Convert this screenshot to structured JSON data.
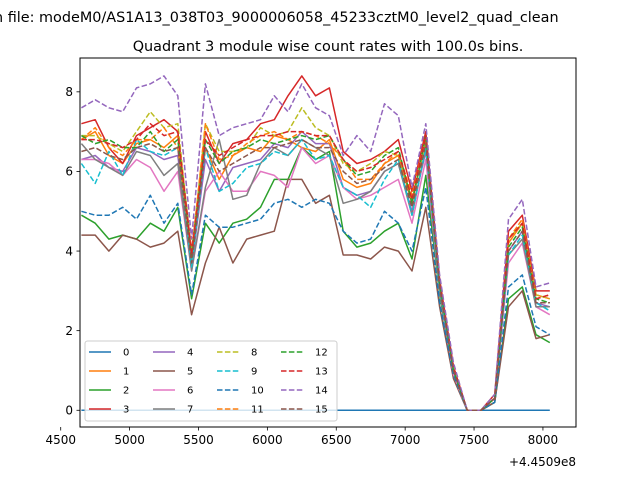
{
  "figure": {
    "suptitle": "n file: modeM0/AS1A13_038T03_9000006058_45233cztM0_level2_quad_clean",
    "title": "Quadrant 3 module wise count rates with 100.0s bins.",
    "x_offset_label": "+4.4509e8"
  },
  "chart_data": {
    "type": "line",
    "title": "Quadrant 3 module wise count rates with 100.0s bins.",
    "xlabel": "",
    "ylabel": "",
    "x_offset": 445090000,
    "xlim": [
      4640,
      8240
    ],
    "ylim": [
      -0.42,
      8.85
    ],
    "xticks": [
      4500,
      5000,
      5500,
      6000,
      6500,
      7000,
      7500,
      8000
    ],
    "yticks": [
      0,
      2,
      4,
      6,
      8
    ],
    "grid": false,
    "legend": {
      "location": "lower left",
      "columns": 4
    },
    "x": [
      4650,
      4750,
      4850,
      4950,
      5050,
      5150,
      5250,
      5350,
      5450,
      5550,
      5650,
      5750,
      5850,
      5950,
      6050,
      6150,
      6250,
      6350,
      6450,
      6550,
      6650,
      6750,
      6850,
      6950,
      7050,
      7150,
      7250,
      7350,
      7450,
      7550,
      7650,
      7750,
      7850,
      7950,
      8050
    ],
    "series": [
      {
        "name": "0",
        "color": "#1f77b4",
        "dash": "solid",
        "values": [
          0,
          0,
          0,
          0,
          0,
          0,
          0,
          0,
          0,
          0,
          0,
          0,
          0,
          0,
          0,
          0,
          0,
          0,
          0,
          0,
          0,
          0,
          0,
          0,
          0,
          0,
          0,
          0,
          0,
          0,
          0,
          0,
          0,
          0,
          0
        ]
      },
      {
        "name": "1",
        "color": "#ff7f0e",
        "dash": "solid",
        "values": [
          6.8,
          7.0,
          6.4,
          6.2,
          6.7,
          6.8,
          6.6,
          6.9,
          3.8,
          6.6,
          5.8,
          6.4,
          6.6,
          6.5,
          6.9,
          6.8,
          6.6,
          6.5,
          6.8,
          5.8,
          5.6,
          5.7,
          6.2,
          6.4,
          5.2,
          6.8,
          3.2,
          1.0,
          0,
          0,
          0.3,
          4.2,
          4.7,
          2.9,
          2.8
        ]
      },
      {
        "name": "2",
        "color": "#2ca02c",
        "dash": "solid",
        "values": [
          4.9,
          4.7,
          4.3,
          4.4,
          4.3,
          4.7,
          4.5,
          5.1,
          2.8,
          4.7,
          4.2,
          4.7,
          4.8,
          5.1,
          5.8,
          5.8,
          6.6,
          6.3,
          6.5,
          4.5,
          4.1,
          4.2,
          4.5,
          4.7,
          3.8,
          5.9,
          2.9,
          0.9,
          0,
          0,
          0.2,
          2.8,
          3.1,
          1.9,
          1.7
        ]
      },
      {
        "name": "3",
        "color": "#d62728",
        "dash": "solid",
        "values": [
          7.2,
          7.3,
          6.6,
          6.2,
          6.9,
          7.1,
          7.3,
          7.0,
          4.0,
          7.0,
          6.2,
          6.7,
          6.8,
          7.2,
          7.3,
          7.9,
          8.4,
          7.9,
          8.1,
          6.5,
          6.2,
          6.3,
          6.5,
          6.8,
          5.5,
          7.0,
          3.3,
          1.1,
          0,
          0,
          0.4,
          4.5,
          4.9,
          3.0,
          3.0
        ]
      },
      {
        "name": "4",
        "color": "#9467bd",
        "dash": "solid",
        "values": [
          6.3,
          6.4,
          6.1,
          6.0,
          6.6,
          6.5,
          6.3,
          6.4,
          3.6,
          6.3,
          5.5,
          6.1,
          6.2,
          6.3,
          6.7,
          6.6,
          7.0,
          6.7,
          6.7,
          5.6,
          5.4,
          5.5,
          6.0,
          6.2,
          5.0,
          6.5,
          3.1,
          1.0,
          0,
          0,
          0.3,
          4.0,
          4.5,
          2.7,
          2.6
        ]
      },
      {
        "name": "5",
        "color": "#8c564b",
        "dash": "solid",
        "values": [
          4.4,
          4.4,
          4.0,
          4.4,
          4.3,
          4.1,
          4.2,
          4.5,
          2.4,
          3.7,
          4.6,
          3.7,
          4.3,
          4.4,
          4.5,
          5.8,
          5.8,
          5.2,
          5.4,
          3.9,
          3.9,
          3.8,
          4.1,
          4.0,
          3.5,
          5.1,
          2.6,
          0.8,
          0,
          0,
          0.2,
          2.6,
          3.0,
          1.8,
          1.9
        ]
      },
      {
        "name": "6",
        "color": "#e377c2",
        "dash": "solid",
        "values": [
          6.3,
          6.3,
          6.2,
          5.9,
          6.3,
          6.1,
          5.5,
          6.0,
          3.5,
          5.5,
          6.0,
          5.5,
          5.5,
          6.0,
          5.9,
          5.6,
          6.6,
          6.2,
          6.4,
          5.6,
          5.3,
          5.4,
          5.6,
          5.8,
          4.7,
          6.3,
          3.0,
          0.9,
          0,
          0,
          0.3,
          3.7,
          4.2,
          2.6,
          2.4
        ]
      },
      {
        "name": "7",
        "color": "#7f7f7f",
        "dash": "solid",
        "values": [
          6.7,
          6.3,
          6.1,
          5.9,
          6.5,
          6.4,
          5.9,
          6.2,
          3.5,
          5.6,
          6.8,
          5.3,
          5.4,
          6.2,
          6.6,
          6.4,
          6.8,
          6.6,
          6.4,
          5.2,
          5.3,
          5.5,
          6.0,
          6.2,
          4.9,
          6.6,
          3.0,
          1.0,
          0,
          0,
          0.3,
          3.9,
          4.3,
          2.6,
          2.6
        ]
      },
      {
        "name": "8",
        "color": "#bcbd22",
        "dash": "dashed",
        "values": [
          6.9,
          6.9,
          6.7,
          6.5,
          7.0,
          7.5,
          7.1,
          7.2,
          3.9,
          7.2,
          6.5,
          6.5,
          6.6,
          7.1,
          6.9,
          7.0,
          7.6,
          7.1,
          6.9,
          6.2,
          6.0,
          6.2,
          6.5,
          6.4,
          5.3,
          6.7,
          3.2,
          1.1,
          0,
          0,
          0.3,
          4.3,
          4.7,
          2.9,
          2.8
        ]
      },
      {
        "name": "9",
        "color": "#17becf",
        "dash": "dashed",
        "values": [
          6.2,
          5.7,
          6.5,
          5.9,
          6.8,
          6.5,
          6.4,
          6.6,
          3.6,
          6.6,
          5.5,
          5.7,
          6.1,
          6.2,
          6.5,
          6.4,
          6.8,
          6.3,
          6.4,
          5.6,
          5.4,
          5.1,
          5.8,
          6.3,
          4.9,
          6.6,
          3.1,
          1.0,
          0,
          0,
          0.3,
          3.9,
          4.4,
          2.7,
          2.5
        ]
      },
      {
        "name": "10",
        "color": "#1f77b4",
        "dash": "dashed",
        "values": [
          5.0,
          4.9,
          4.9,
          5.1,
          4.8,
          5.4,
          4.7,
          5.2,
          2.9,
          4.9,
          4.6,
          4.6,
          4.7,
          4.8,
          5.2,
          5.3,
          5.1,
          5.3,
          5.2,
          4.5,
          4.2,
          4.3,
          5.0,
          4.7,
          4.0,
          5.6,
          2.7,
          0.9,
          0,
          0,
          0.2,
          3.1,
          3.4,
          2.1,
          1.9
        ]
      },
      {
        "name": "11",
        "color": "#ff7f0e",
        "dash": "dashed",
        "values": [
          6.8,
          7.1,
          6.6,
          6.4,
          6.8,
          6.8,
          7.1,
          6.6,
          3.9,
          7.2,
          6.3,
          6.4,
          6.7,
          6.9,
          7.0,
          6.8,
          7.0,
          6.9,
          6.7,
          6.3,
          5.8,
          5.8,
          6.2,
          6.5,
          5.4,
          6.9,
          3.2,
          1.1,
          0,
          0,
          0.3,
          4.3,
          4.8,
          2.8,
          2.9
        ]
      },
      {
        "name": "12",
        "color": "#2ca02c",
        "dash": "dashed",
        "values": [
          6.9,
          6.7,
          6.8,
          6.6,
          6.6,
          7.0,
          6.5,
          6.8,
          3.8,
          6.8,
          6.2,
          6.5,
          6.6,
          6.8,
          6.7,
          6.8,
          6.9,
          6.8,
          6.9,
          6.3,
          5.9,
          6.0,
          6.4,
          6.6,
          5.2,
          6.9,
          3.2,
          1.0,
          0,
          0,
          0.3,
          4.1,
          4.6,
          2.8,
          2.7
        ]
      },
      {
        "name": "13",
        "color": "#d62728",
        "dash": "dashed",
        "values": [
          6.8,
          6.8,
          6.7,
          6.6,
          6.8,
          7.2,
          6.9,
          7.0,
          3.9,
          6.8,
          6.4,
          6.6,
          6.8,
          6.9,
          6.9,
          7.0,
          7.0,
          6.9,
          6.9,
          6.3,
          6.0,
          6.1,
          6.3,
          6.5,
          5.3,
          6.9,
          3.2,
          1.1,
          0,
          0,
          0.3,
          4.3,
          4.7,
          2.8,
          2.9
        ]
      },
      {
        "name": "14",
        "color": "#9467bd",
        "dash": "dashed",
        "values": [
          7.6,
          7.8,
          7.6,
          7.5,
          8.1,
          8.2,
          8.4,
          7.9,
          4.3,
          8.2,
          6.9,
          7.1,
          7.2,
          7.3,
          7.9,
          7.5,
          8.2,
          7.6,
          7.4,
          6.4,
          6.9,
          6.5,
          7.7,
          7.4,
          5.6,
          7.2,
          3.4,
          1.2,
          0,
          0,
          0.4,
          4.8,
          5.3,
          3.1,
          3.2
        ]
      },
      {
        "name": "15",
        "color": "#8c564b",
        "dash": "dashed",
        "values": [
          6.5,
          6.6,
          6.4,
          6.3,
          6.6,
          6.7,
          6.5,
          6.6,
          3.7,
          6.6,
          6.0,
          6.2,
          6.4,
          6.6,
          6.6,
          6.7,
          6.8,
          6.6,
          6.6,
          6.0,
          5.7,
          5.8,
          6.1,
          6.3,
          5.1,
          6.7,
          3.1,
          1.0,
          0,
          0,
          0.3,
          4.0,
          4.5,
          2.7,
          2.7
        ]
      }
    ]
  }
}
